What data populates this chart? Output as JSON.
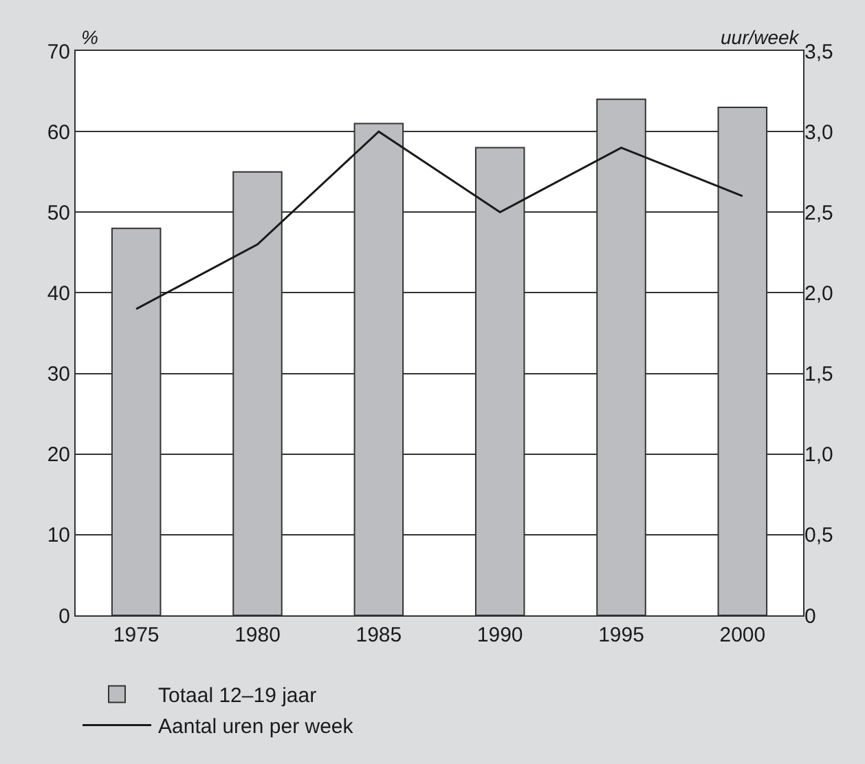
{
  "chart_data": {
    "type": "bar",
    "categories": [
      "1975",
      "1980",
      "1985",
      "1990",
      "1995",
      "2000"
    ],
    "series": [
      {
        "name": "Totaal 12–19 jaar",
        "color": "#bcbdc1",
        "values": [
          48,
          55,
          61,
          58,
          64,
          63
        ]
      },
      {
        "name": "Aantal uren per week",
        "type": "line",
        "axis": "y2",
        "color": "#1a1a1a",
        "values": [
          1.9,
          2.3,
          3.0,
          2.5,
          2.9,
          2.6
        ]
      }
    ],
    "ylabel": "%",
    "y2label": "uur/week",
    "ylim": [
      0,
      70
    ],
    "yticks": [
      0,
      10,
      20,
      30,
      40,
      50,
      60,
      70
    ],
    "y2lim": [
      0,
      3.5
    ],
    "y2ticks": [
      0,
      {
        "value": 0.5,
        "label": "0,5"
      },
      {
        "value": 1,
        "label": "1,0"
      },
      {
        "value": 1.5,
        "label": "1,5"
      },
      {
        "value": 2,
        "label": "2,0"
      },
      {
        "value": 2.5,
        "label": "2,5"
      },
      {
        "value": 3,
        "label": "3,0"
      },
      {
        "value": 3.5,
        "label": "3,5"
      }
    ],
    "grid": "y",
    "legend": "bottom",
    "marker": "none",
    "line_style": "solid"
  }
}
